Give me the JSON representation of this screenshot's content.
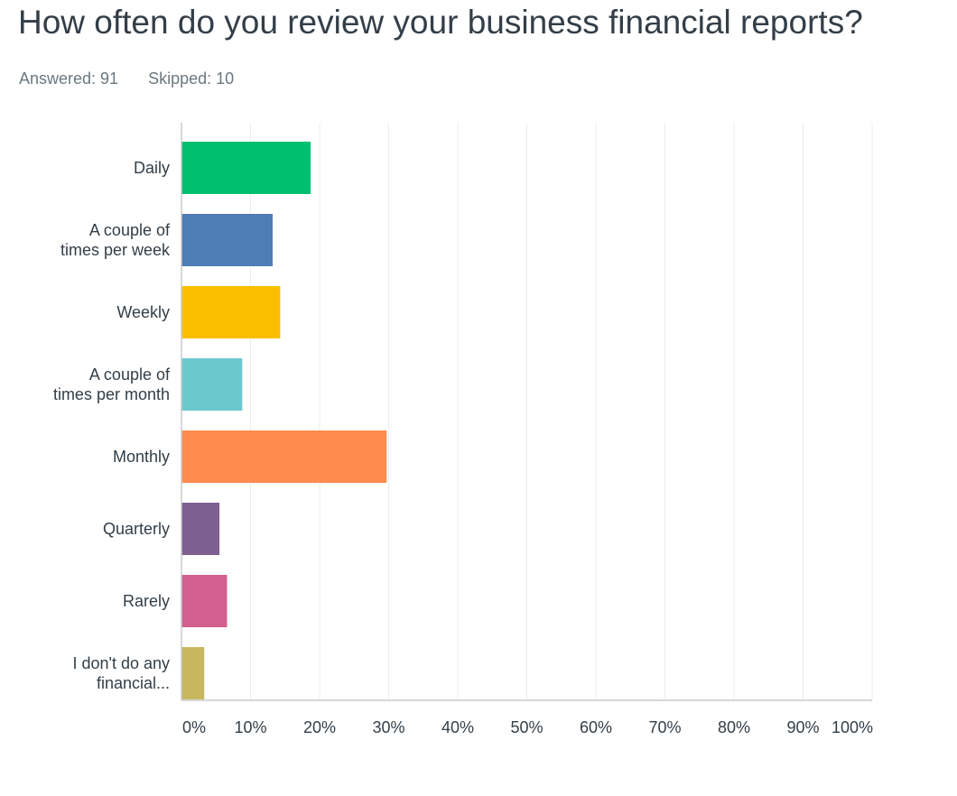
{
  "question": {
    "title": "How often do you review your business financial reports?",
    "answered": "Answered: 91",
    "skipped": "Skipped: 10"
  },
  "chart_data": {
    "type": "bar",
    "orientation": "horizontal",
    "categories": [
      [
        "Daily"
      ],
      [
        "A couple of",
        "times per week"
      ],
      [
        "Weekly"
      ],
      [
        "A couple of",
        "times per month"
      ],
      [
        "Monthly"
      ],
      [
        "Quarterly"
      ],
      [
        "Rarely"
      ],
      [
        "I don't do any",
        "financial..."
      ]
    ],
    "values": [
      18.7,
      13.2,
      14.3,
      8.8,
      29.7,
      5.5,
      6.6,
      3.3
    ],
    "colors": [
      "#00bf6f",
      "#507cb6",
      "#f9be00",
      "#6bc8cd",
      "#ff8b4f",
      "#7f5f90",
      "#d25f90",
      "#c9b75f"
    ],
    "xlim": [
      0,
      100
    ],
    "ticks": [
      "0%",
      "10%",
      "20%",
      "30%",
      "40%",
      "50%",
      "60%",
      "70%",
      "80%",
      "90%",
      "100%"
    ],
    "grid": true
  }
}
